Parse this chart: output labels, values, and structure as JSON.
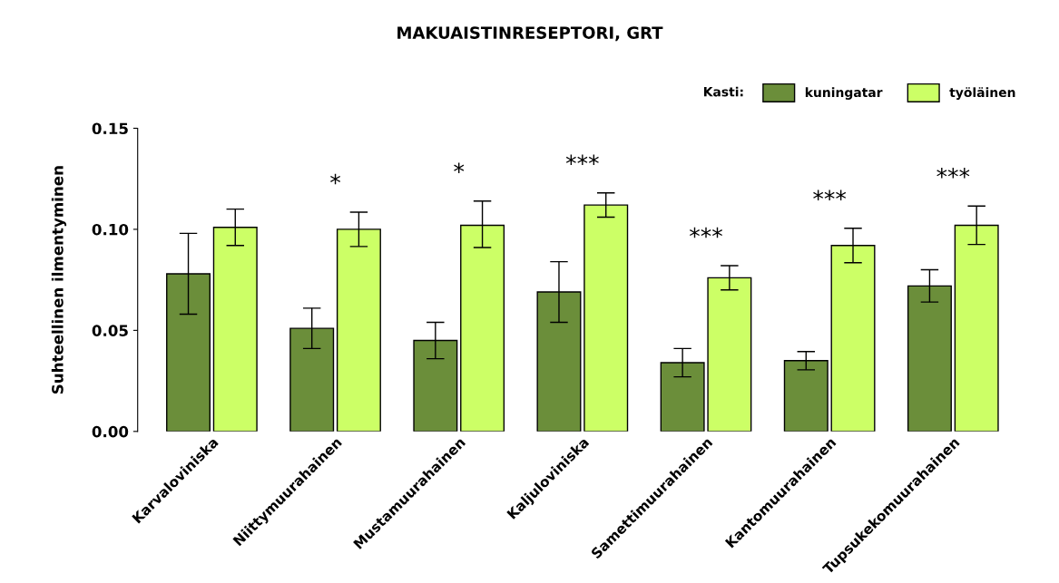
{
  "chart_data": {
    "type": "bar",
    "title": "MAKUAISTINRESEPTORI, GRT",
    "ylabel": "Suhteellinen ilmentyminen",
    "legend_title": "Kasti:",
    "legend": "top right",
    "grid": false,
    "categories": [
      "Karvaloviniska",
      "Niittymuurahainen",
      "Mustamuurahainen",
      "Kaljuloviniska",
      "Samettimuurahainen",
      "Kantomuurahainen",
      "Tupsukekomuurahainen"
    ],
    "series": [
      {
        "name": "kuningatar",
        "color": "#6b8e3a",
        "values": [
          0.078,
          0.051,
          0.045,
          0.069,
          0.034,
          0.035,
          0.072
        ],
        "errors": [
          0.02,
          0.01,
          0.009,
          0.015,
          0.007,
          0.0045,
          0.008
        ]
      },
      {
        "name": "työläinen",
        "color": "#ccff66",
        "values": [
          0.101,
          0.1,
          0.102,
          0.112,
          0.076,
          0.092,
          0.102
        ],
        "errors": [
          0.009,
          0.0085,
          [
            0.091,
            0.114
          ],
          0.006,
          0.006,
          0.0085,
          0.0095
        ]
      }
    ],
    "ylim": [
      0,
      0.15
    ],
    "yticks": [
      {
        "value": 0,
        "label": "0.00"
      },
      {
        "value": 0.05,
        "label": "0.05"
      },
      {
        "value": 0.1,
        "label": "0.10"
      },
      {
        "value": 0.15,
        "label": "0.15"
      }
    ],
    "annotations": [
      "*",
      "*",
      "***",
      "***",
      "***",
      "***"
    ]
  }
}
